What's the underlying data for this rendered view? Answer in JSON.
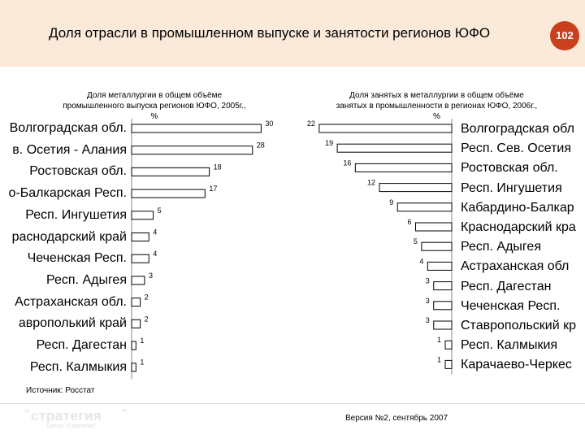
{
  "header": {
    "title": "Доля отрасли в промышленном выпуске и занятости регионов ЮФО",
    "page_number": "102"
  },
  "chart_data": [
    {
      "type": "bar",
      "orientation": "horizontal",
      "title": "Доля металлургии в общем объёме промышленного выпуска регионов ЮФО, 2005г., %",
      "title_lines": [
        "Доля металлургии в общем объёме",
        "промышленного выпуска регионов ЮФО, 2005г.,",
        "%"
      ],
      "categories": [
        "Волгоградская обл.",
        "Респ. Сев. Осетия - Алания",
        "Ростовская обл.",
        "Кабардино-Балкарская Респ.",
        "Респ. Ингушетия",
        "Краснодарский край",
        "Чеченская Респ.",
        "Респ. Адыгея",
        "Астраханская обл.",
        "Ставропольский край",
        "Респ. Дагестан",
        "Респ. Калмыкия"
      ],
      "category_labels_visible": [
        "Волгоградская обл.",
        "в. Осетия - Алания",
        "Ростовская обл.",
        "о-Балкарская Респ.",
        "Респ. Ингушетия",
        "раснодарский край",
        "Чеченская Респ.",
        "Респ. Адыгея",
        "Астраханская обл.",
        "аврополький край",
        "Респ. Дагестан",
        "Респ. Калмыкия"
      ],
      "values": [
        30,
        28,
        18,
        17,
        5,
        4,
        4,
        3,
        2,
        2,
        1,
        1
      ],
      "xlim": [
        0,
        32
      ]
    },
    {
      "type": "bar",
      "orientation": "horizontal",
      "direction": "right-to-left",
      "title": "Доля занятых в металлургии в общем объёме занятых в промышленности в регионах ЮФО, 2006г., %",
      "title_lines": [
        "Доля занятых в металлургии в общем объёме",
        "занятых в промышленности в регионах ЮФО, 2006г.,",
        "%"
      ],
      "categories": [
        "Волгоградская обл.",
        "Респ. Сев. Осетия - Алания",
        "Ростовская обл.",
        "Респ. Ингушетия",
        "Кабардино-Балкарская Респ.",
        "Краснодарский край",
        "Респ. Адыгея",
        "Астраханская обл.",
        "Респ. Дагестан",
        "Чеченская Респ.",
        "Ставропольский край",
        "Респ. Калмыкия",
        "Карачаево-Черкесская Респ."
      ],
      "category_labels_visible": [
        "Волгоградская обл",
        "Респ. Сев. Осетия",
        "Ростовская обл.",
        "Респ. Ингушетия",
        "Кабардино-Балкар",
        "Краснодарский кра",
        "Респ. Адыгея",
        "Астраханская обл",
        "Респ. Дагестан",
        "Чеченская Респ.",
        "Ставропольский кр",
        "Респ. Калмыкия",
        "Карачаево-Черкес"
      ],
      "values": [
        22,
        19,
        16,
        12,
        9,
        6,
        5,
        4,
        3,
        3,
        3,
        1,
        1
      ],
      "xlim": [
        0,
        24
      ]
    }
  ],
  "footer": {
    "source": "Источник: Росстат",
    "version": "Версия №2, сентябрь 2007",
    "logo_text": "стратегия",
    "logo_sub": "Центр \"Стратегия\""
  },
  "colors": {
    "header_bg": "#fbead9",
    "badge": "#c8401c",
    "bar_fill": "#ffffff",
    "bar_stroke": "#000000"
  }
}
